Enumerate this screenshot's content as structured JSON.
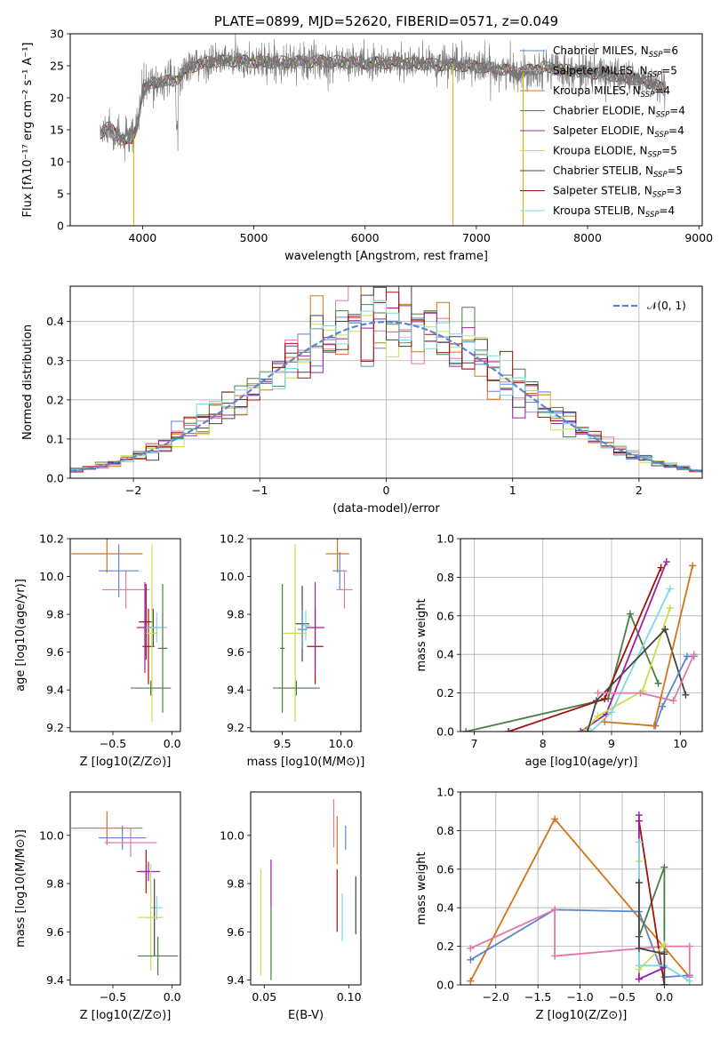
{
  "chart_data": [
    {
      "id": "spectrum",
      "type": "line",
      "title": "PLATE=0899, MJD=52620, FIBERID=0571, z=0.049",
      "xlabel": "wavelength [Angstrom, rest frame]",
      "ylabel": "Flux [fλ10⁻¹⁷ erg cm⁻² s⁻¹ A⁻¹]",
      "xlim": [
        3350,
        9030
      ],
      "ylim": [
        0,
        30
      ],
      "xticks": [
        "4000",
        "5000",
        "6000",
        "7000",
        "8000",
        "9000"
      ],
      "yticks": [
        "0",
        "5",
        "10",
        "15",
        "20",
        "25",
        "30"
      ],
      "grid": false,
      "legend_position": "upper right",
      "series": [
        {
          "name": "Chabrier MILES, N_SSP=6",
          "color": "#5a85d0"
        },
        {
          "name": "Salpeter MILES, N_SSP=5",
          "color": "#e377a6"
        },
        {
          "name": "Kroupa MILES, N_SSP=4",
          "color": "#d4731a"
        },
        {
          "name": "Chabrier ELODIE, N_SSP=4",
          "color": "#4a7d46"
        },
        {
          "name": "Salpeter ELODIE, N_SSP=4",
          "color": "#9d1fa8"
        },
        {
          "name": "Kroupa ELODIE, N_SSP=5",
          "color": "#c8e04a"
        },
        {
          "name": "Chabrier STELIB, N_SSP=5",
          "color": "#444444"
        },
        {
          "name": "Salpeter STELIB, N_SSP=3",
          "color": "#a31010"
        },
        {
          "name": "Kroupa STELIB, N_SSP=4",
          "color": "#7fd8de"
        }
      ],
      "continuum_model": {
        "x": [
          3620,
          3700,
          3800,
          3900,
          3950,
          4000,
          4100,
          4200,
          4300,
          4400,
          4500,
          4600,
          4800,
          5000,
          5200,
          5400,
          5600,
          5800,
          6000,
          6200,
          6400,
          6600,
          6800,
          7000,
          7200,
          7400,
          7600,
          7800,
          8000,
          8200,
          8400,
          8600,
          8700
        ],
        "y": [
          14.5,
          15.5,
          13.5,
          13.5,
          15.5,
          21.0,
          22.5,
          22.5,
          22.8,
          24.5,
          25.2,
          25.6,
          25.8,
          25.6,
          25.6,
          25.6,
          25.7,
          25.6,
          25.4,
          25.5,
          25.4,
          25.2,
          25.1,
          24.9,
          24.5,
          24.0,
          24.8,
          24.3,
          24.0,
          23.6,
          23.0,
          22.2,
          21.0
        ]
      },
      "observed_dips": [
        {
          "x": 3920,
          "y": 0
        },
        {
          "x": 6790,
          "y": 0
        },
        {
          "x": 7420,
          "y": 0
        }
      ]
    },
    {
      "id": "residual-histogram",
      "type": "bar",
      "xlabel": "(data-model)/error",
      "ylabel": "Normed distribution",
      "xlim": [
        -2.5,
        2.5
      ],
      "ylim": [
        0,
        0.49
      ],
      "xticks": [
        "−2",
        "−1",
        "0",
        "1",
        "2"
      ],
      "yticks": [
        "0.0",
        "0.1",
        "0.2",
        "0.3",
        "0.4"
      ],
      "grid": true,
      "legend_position": "upper right",
      "legend_label": "𝒩(0, 1)",
      "gaussian": {
        "mean": 0,
        "sigma": 1,
        "color": "#5a85d0"
      },
      "bin_width": 0.1,
      "bin_start": -2.5
    },
    {
      "id": "age-vs-Z",
      "type": "scatter",
      "xlabel": "Z [log10(Z/Z⊙)]",
      "ylabel": "age [log10(age/yr)]",
      "xlim": [
        -0.86,
        0.07
      ],
      "ylim": [
        9.18,
        10.2
      ],
      "xticks": [
        "−0.5",
        "0.0"
      ],
      "yticks": [
        "9.2",
        "9.4",
        "9.6",
        "9.8",
        "10.0",
        "10.2"
      ],
      "points": [
        {
          "x": -0.55,
          "y": 10.12,
          "xerr": 0.3,
          "yerr": 0.1,
          "color": "#d4731a"
        },
        {
          "x": -0.45,
          "y": 10.03,
          "xerr": 0.17,
          "yerr": 0.14,
          "color": "#5a85d0"
        },
        {
          "x": -0.39,
          "y": 9.93,
          "xerr": 0.2,
          "yerr": 0.1,
          "color": "#e377a6"
        },
        {
          "x": -0.22,
          "y": 9.76,
          "xerr": 0.06,
          "yerr": 0.2,
          "color": "#a31010"
        },
        {
          "x": -0.2,
          "y": 9.63,
          "xerr": 0.05,
          "yerr": 0.2,
          "color": "#a31010"
        },
        {
          "x": -0.23,
          "y": 9.73,
          "xerr": 0.07,
          "yerr": 0.24,
          "color": "#9d1fa8"
        },
        {
          "x": -0.16,
          "y": 9.73,
          "xerr": 0.05,
          "yerr": 0.1,
          "color": "#444444"
        },
        {
          "x": -0.13,
          "y": 9.73,
          "xerr": 0.09,
          "yerr": 0.08,
          "color": "#7fd8de"
        },
        {
          "x": -0.17,
          "y": 9.7,
          "xerr": 0.05,
          "yerr": 0.47,
          "color": "#c8e04a"
        },
        {
          "x": -0.18,
          "y": 9.41,
          "xerr": 0.17,
          "yerr": 0.04,
          "color": "#4a7d46"
        },
        {
          "x": -0.08,
          "y": 9.62,
          "xerr": 0.04,
          "yerr": 0.34,
          "color": "#4a7d46"
        }
      ]
    },
    {
      "id": "age-vs-mass",
      "type": "scatter",
      "xlabel": "mass [log10(M/M⊙)]",
      "xlim": [
        9.23,
        10.17
      ],
      "ylim": [
        9.18,
        10.2
      ],
      "xticks": [
        "9.5",
        "10.0"
      ],
      "yticks": [
        "9.2",
        "9.4",
        "9.6",
        "9.8",
        "10.0",
        "10.2"
      ],
      "points": [
        {
          "x": 9.97,
          "y": 10.12,
          "xerr": 0.1,
          "yerr": 0.1,
          "color": "#d4731a"
        },
        {
          "x": 9.99,
          "y": 10.03,
          "xerr": 0.06,
          "yerr": 0.1,
          "color": "#5a85d0"
        },
        {
          "x": 10.03,
          "y": 9.93,
          "xerr": 0.07,
          "yerr": 0.1,
          "color": "#e377a6"
        },
        {
          "x": 9.78,
          "y": 9.63,
          "xerr": 0.07,
          "yerr": 0.2,
          "color": "#a31010"
        },
        {
          "x": 9.78,
          "y": 9.73,
          "xerr": 0.08,
          "yerr": 0.24,
          "color": "#9d1fa8"
        },
        {
          "x": 9.67,
          "y": 9.75,
          "xerr": 0.06,
          "yerr": 0.2,
          "color": "#444444"
        },
        {
          "x": 9.7,
          "y": 9.74,
          "xerr": 0.04,
          "yerr": 0.08,
          "color": "#7fd8de"
        },
        {
          "x": 9.61,
          "y": 9.7,
          "xerr": 0.1,
          "yerr": 0.47,
          "color": "#c8e04a"
        },
        {
          "x": 9.67,
          "y": 9.72,
          "xerr": 0.04,
          "yerr": 0.1,
          "color": "#5a85d0"
        },
        {
          "x": 9.62,
          "y": 9.41,
          "xerr": 0.2,
          "yerr": 0.04,
          "color": "#4a7d46"
        },
        {
          "x": 9.5,
          "y": 9.62,
          "xerr": 0.02,
          "yerr": 0.34,
          "color": "#4a7d46"
        }
      ]
    },
    {
      "id": "mass-weight-vs-age",
      "type": "line",
      "xlabel": "age [log10(age/yr)]",
      "ylabel": "mass weight",
      "xlim": [
        6.8,
        10.32
      ],
      "ylim": [
        0,
        1
      ],
      "xticks": [
        "7",
        "8",
        "9",
        "10"
      ],
      "yticks": [
        "0.0",
        "0.2",
        "0.4",
        "0.6",
        "0.8",
        "1.0"
      ],
      "grid": true,
      "series": [
        {
          "color": "#4a7d46",
          "x": [
            6.88,
            8.95,
            9.27,
            9.68
          ],
          "y": [
            0.0,
            0.17,
            0.61,
            0.25
          ]
        },
        {
          "color": "#a31010",
          "x": [
            7.5,
            8.9,
            9.72
          ],
          "y": [
            0.0,
            0.17,
            0.85
          ]
        },
        {
          "color": "#9d1fa8",
          "x": [
            8.55,
            8.92,
            9.8
          ],
          "y": [
            0.0,
            0.09,
            0.88
          ]
        },
        {
          "color": "#c8e04a",
          "x": [
            8.6,
            8.8,
            9.45,
            9.85
          ],
          "y": [
            0.0,
            0.08,
            0.21,
            0.64
          ]
        },
        {
          "color": "#7fd8de",
          "x": [
            8.7,
            9.0,
            9.85
          ],
          "y": [
            0.0,
            0.1,
            0.74
          ]
        },
        {
          "color": "#444444",
          "x": [
            8.65,
            8.78,
            9.78,
            10.08
          ],
          "y": [
            0.0,
            0.16,
            0.53,
            0.19
          ]
        },
        {
          "color": "#5a85d0",
          "x": [
            9.64,
            9.74,
            10.1,
            10.2
          ],
          "y": [
            0.03,
            0.13,
            0.39,
            0.39
          ]
        },
        {
          "color": "#e377a6",
          "x": [
            8.8,
            9.42,
            9.9,
            10.2
          ],
          "y": [
            0.2,
            0.2,
            0.16,
            0.4
          ]
        },
        {
          "color": "#d4731a",
          "x": [
            8.9,
            9.62,
            10.18
          ],
          "y": [
            0.05,
            0.03,
            0.86
          ]
        }
      ]
    },
    {
      "id": "mass-vs-Z",
      "type": "scatter",
      "xlabel": "Z [log10(Z/Z⊙)]",
      "ylabel": "mass [log10(M/M⊙)]",
      "xlim": [
        -0.86,
        0.07
      ],
      "ylim": [
        9.38,
        10.18
      ],
      "xticks": [
        "−0.5",
        "0.0"
      ],
      "yticks": [
        "9.4",
        "9.6",
        "9.8",
        "10.0"
      ],
      "points": [
        {
          "x": -0.55,
          "y": 10.03,
          "xerr": 0.3,
          "yerr": 0.07,
          "color": "#d4731a"
        },
        {
          "x": -0.42,
          "y": 9.99,
          "xerr": 0.2,
          "yerr": 0.05,
          "color": "#5a85d0"
        },
        {
          "x": -0.35,
          "y": 9.97,
          "xerr": 0.22,
          "yerr": 0.06,
          "color": "#e377a6"
        },
        {
          "x": -0.22,
          "y": 9.85,
          "xerr": 0.05,
          "yerr": 0.09,
          "color": "#a31010"
        },
        {
          "x": -0.2,
          "y": 9.85,
          "xerr": 0.1,
          "yerr": 0.04,
          "color": "#9d1fa8"
        },
        {
          "x": -0.13,
          "y": 9.7,
          "xerr": 0.05,
          "yerr": 0.05,
          "color": "#7fd8de"
        },
        {
          "x": -0.15,
          "y": 9.66,
          "xerr": 0.06,
          "yerr": 0.16,
          "color": "#444444"
        },
        {
          "x": -0.18,
          "y": 9.66,
          "xerr": 0.11,
          "yerr": 0.22,
          "color": "#c8e04a"
        },
        {
          "x": -0.12,
          "y": 9.5,
          "xerr": 0.17,
          "yerr": 0.08,
          "color": "#4a7d46"
        }
      ]
    },
    {
      "id": "mass-vs-EBV",
      "type": "scatter",
      "xlabel": "E(B-V)",
      "xlim": [
        0.042,
        0.107
      ],
      "ylim": [
        9.38,
        10.18
      ],
      "xticks": [
        "0.05",
        "0.10"
      ],
      "yticks": [
        "9.4",
        "9.6",
        "9.8",
        "10.0"
      ],
      "points": [
        {
          "x": 0.098,
          "y": 9.99,
          "yerr": 0.05,
          "color": "#5a85d0"
        },
        {
          "x": 0.091,
          "y": 10.05,
          "yerr": 0.1,
          "color": "#e377a6"
        },
        {
          "x": 0.093,
          "y": 9.98,
          "yerr": 0.1,
          "color": "#d4731a"
        },
        {
          "x": 0.093,
          "y": 9.73,
          "yerr": 0.13,
          "color": "#a31010"
        },
        {
          "x": 0.054,
          "y": 9.8,
          "yerr": 0.1,
          "color": "#9d1fa8"
        },
        {
          "x": 0.096,
          "y": 9.66,
          "yerr": 0.1,
          "color": "#7fd8de"
        },
        {
          "x": 0.104,
          "y": 9.71,
          "yerr": 0.12,
          "color": "#444444"
        },
        {
          "x": 0.048,
          "y": 9.64,
          "yerr": 0.22,
          "color": "#c8e04a"
        },
        {
          "x": 0.054,
          "y": 9.55,
          "yerr": 0.15,
          "color": "#4a7d46"
        }
      ]
    },
    {
      "id": "mass-weight-vs-Z",
      "type": "line",
      "xlabel": "Z [log10(Z/Z⊙)]",
      "ylabel": "mass weight",
      "xlim": [
        -2.42,
        0.45
      ],
      "ylim": [
        0,
        1
      ],
      "xticks": [
        "−2.0",
        "−1.5",
        "−1.0",
        "−0.5",
        "0.0"
      ],
      "yticks": [
        "0.0",
        "0.2",
        "0.4",
        "0.6",
        "0.8",
        "1.0"
      ],
      "grid": true,
      "series": [
        {
          "color": "#d4731a",
          "x": [
            -2.3,
            -1.3,
            0.3
          ],
          "y": [
            0.02,
            0.86,
            0.04
          ]
        },
        {
          "color": "#5a85d0",
          "x": [
            -2.3,
            -1.3,
            -0.3,
            0.0,
            0.3
          ],
          "y": [
            0.13,
            0.39,
            0.38,
            0.04,
            0.05
          ]
        },
        {
          "color": "#e377a6",
          "x": [
            -2.3,
            -1.3,
            -1.3,
            0.0,
            0.3,
            0.3
          ],
          "y": [
            0.19,
            0.39,
            0.15,
            0.2,
            0.2,
            0.04
          ]
        },
        {
          "color": "#4a7d46",
          "x": [
            -0.3,
            0.0,
            0.0
          ],
          "y": [
            0.25,
            0.61,
            0.17
          ]
        },
        {
          "color": "#a31010",
          "x": [
            -0.3,
            0.0
          ],
          "y": [
            0.85,
            0.0
          ]
        },
        {
          "color": "#9d1fa8",
          "x": [
            -0.3,
            -0.3,
            0.0
          ],
          "y": [
            0.88,
            0.03,
            0.09
          ]
        },
        {
          "color": "#c8e04a",
          "x": [
            -0.3,
            -0.3,
            0.0
          ],
          "y": [
            0.64,
            0.08,
            0.21
          ]
        },
        {
          "color": "#7fd8de",
          "x": [
            -0.3,
            -0.3,
            0.0,
            0.3
          ],
          "y": [
            0.74,
            0.1,
            0.1,
            0.02
          ]
        },
        {
          "color": "#444444",
          "x": [
            -0.3,
            -0.3,
            0.0,
            0.0
          ],
          "y": [
            0.53,
            0.19,
            0.16,
            0.0
          ]
        }
      ]
    }
  ]
}
